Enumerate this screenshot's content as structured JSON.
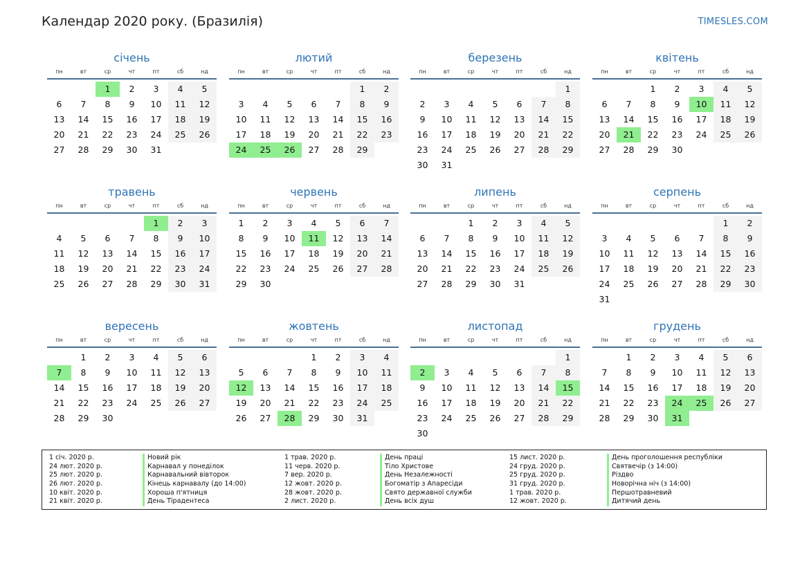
{
  "header": {
    "title": "Календар 2020 року. (Бразилія)",
    "site": "TIMESLES.COM"
  },
  "weekdays": [
    "пн",
    "вт",
    "ср",
    "чт",
    "пт",
    "сб",
    "нд"
  ],
  "months": [
    {
      "name": "січень",
      "offset": 2,
      "days": 31,
      "holidays": [
        1
      ]
    },
    {
      "name": "лютий",
      "offset": 5,
      "days": 29,
      "holidays": [
        24,
        25,
        26
      ]
    },
    {
      "name": "березень",
      "offset": 6,
      "days": 31,
      "holidays": []
    },
    {
      "name": "квітень",
      "offset": 2,
      "days": 30,
      "holidays": [
        10,
        21
      ]
    },
    {
      "name": "травень",
      "offset": 4,
      "days": 31,
      "holidays": [
        1
      ]
    },
    {
      "name": "червень",
      "offset": 0,
      "days": 30,
      "holidays": [
        11
      ]
    },
    {
      "name": "липень",
      "offset": 2,
      "days": 31,
      "holidays": []
    },
    {
      "name": "серпень",
      "offset": 5,
      "days": 31,
      "holidays": []
    },
    {
      "name": "вересень",
      "offset": 1,
      "days": 30,
      "holidays": [
        7
      ]
    },
    {
      "name": "жовтень",
      "offset": 3,
      "days": 31,
      "holidays": [
        12,
        28
      ]
    },
    {
      "name": "листопад",
      "offset": 6,
      "days": 30,
      "holidays": [
        2,
        15
      ]
    },
    {
      "name": "грудень",
      "offset": 1,
      "days": 31,
      "holidays": [
        24,
        25,
        31
      ]
    }
  ],
  "legend": {
    "columns": [
      {
        "dates": [
          "1 січ. 2020 р.",
          "24 лют. 2020 р.",
          "25 лют. 2020 р.",
          "26 лют. 2020 р.",
          "10 квіт. 2020 р.",
          "21 квіт. 2020 р."
        ],
        "names": [
          "Новий рік",
          "Карнавал у понеділок",
          "Карнавальний вівторок",
          "Кінець карнавалу (до 14:00)",
          "Хороша п'ятниця",
          "День Тірадентеса"
        ]
      },
      {
        "dates": [
          "1 трав. 2020 р.",
          "11 черв. 2020 р.",
          "7 вер. 2020 р.",
          "12 жовт. 2020 р.",
          "28 жовт. 2020 р.",
          "2 лист. 2020 р."
        ],
        "names": [
          "День праці",
          "Тіло Христове",
          "День Незалежності",
          "Богоматір з Апаресіди",
          "Свято державної служби",
          "День всіх душ"
        ]
      },
      {
        "dates": [
          "15 лист. 2020 р.",
          "24 груд. 2020 р.",
          "25 груд. 2020 р.",
          "31 груд. 2020 р.",
          "1 трав. 2020 р.",
          "12 жовт. 2020 р."
        ],
        "names": [
          "День проголошення республіки",
          "Святвечір (з 14:00)",
          "Різдво",
          "Новорічна ніч (з 14:00)",
          "Першотравневий",
          "Дитячий день"
        ]
      }
    ]
  }
}
